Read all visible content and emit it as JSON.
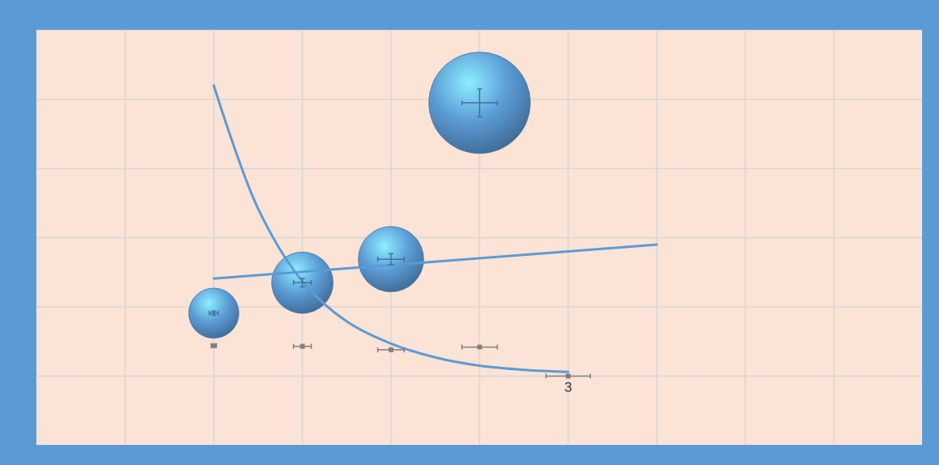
{
  "chart_data": {
    "type": "bubble",
    "xlim": [
      -1,
      9
    ],
    "ylim": [
      -1,
      5
    ],
    "xticks": [
      0,
      1,
      2,
      3,
      4,
      5,
      6,
      7,
      8
    ],
    "yticks": [
      0,
      1,
      2,
      3,
      4
    ],
    "grid": true,
    "tick_labels": false,
    "series": [
      {
        "type": "bubble",
        "color": "#5b9bd5",
        "x": [
          1,
          2,
          3,
          4
        ],
        "y": [
          0.91,
          1.35,
          1.69,
          3.95
        ],
        "sizes": [
          1,
          1.5,
          1.7,
          4.1
        ],
        "x_errors": [
          0.05,
          0.1,
          0.15,
          0.2
        ],
        "y_errors": [
          0.03,
          0.06,
          0.08,
          0.2
        ]
      },
      {
        "type": "scatter",
        "marker": "square",
        "color": "#7f7f7f",
        "x": [
          1,
          2,
          3,
          4,
          5
        ],
        "y": [
          0.44,
          0.43,
          0.38,
          0.42,
          0
        ],
        "x_errors": [
          0.03,
          0.1,
          0.15,
          0.2,
          0.25
        ]
      },
      {
        "type": "line",
        "color": "#5b9bd5",
        "x": [
          1,
          6
        ],
        "y": [
          1.41,
          1.9
        ]
      },
      {
        "type": "line",
        "color": "#5b9bd5",
        "x": [
          1,
          1.5,
          2,
          2.5,
          3,
          3.5,
          4,
          4.5,
          5
        ],
        "y": [
          4.2,
          2.42,
          1.37,
          0.79,
          0.47,
          0.27,
          0.15,
          0.09,
          0.06
        ]
      }
    ],
    "annotations": [
      {
        "text": "3",
        "x": 5,
        "y": 0
      }
    ]
  }
}
